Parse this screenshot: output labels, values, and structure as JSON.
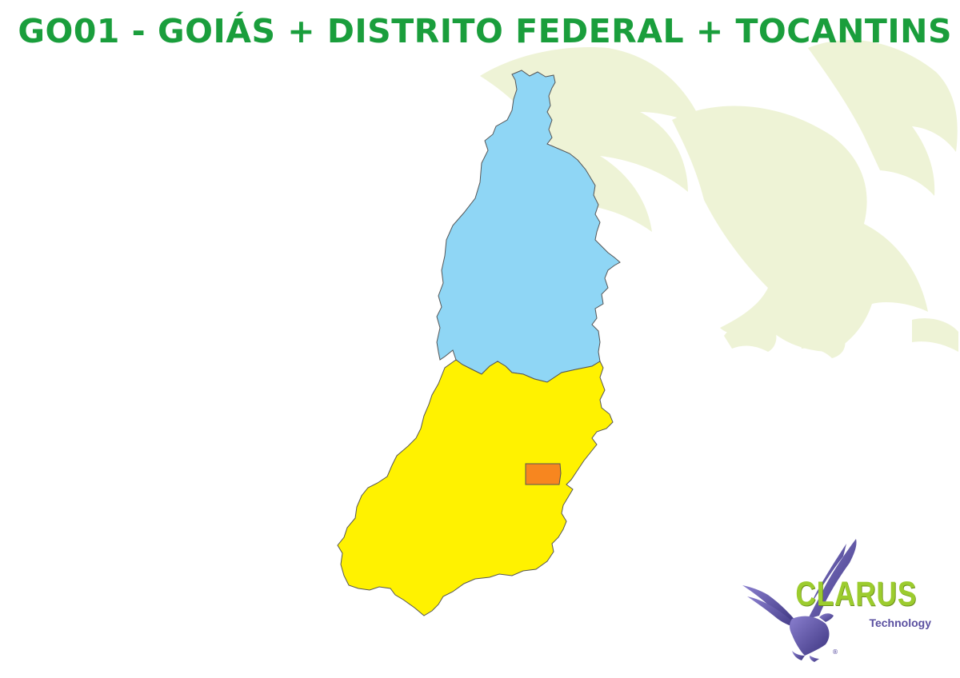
{
  "title": "GO01 - GOIÁS + DISTRITO FEDERAL + TOCANTINS",
  "map": {
    "regions": [
      {
        "name": "Tocantins",
        "color": "#8fd6f5"
      },
      {
        "name": "Goiás",
        "color": "#fff200"
      },
      {
        "name": "Distrito Federal",
        "color": "#f7861f"
      }
    ],
    "border_color": "#555555",
    "watermark_icon": "eagle-icon"
  },
  "logo": {
    "brand": "CLARUS",
    "tagline": "Technology",
    "registered": "®",
    "brand_color": "#9ccc2e",
    "eagle_color": "#5a4fa0",
    "icon": "eagle-icon"
  },
  "colors": {
    "title": "#1a9e3c",
    "watermark": "#eef3d6"
  }
}
